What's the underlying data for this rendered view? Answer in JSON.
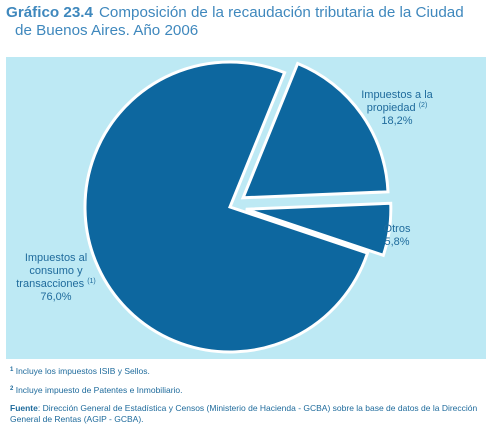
{
  "title": {
    "label": "Gráfico 23.4",
    "line1": "Composición de la recaudación tributaria de la Ciudad",
    "line2": "de Buenos Aires. Año 2006"
  },
  "chart_data": {
    "type": "pie",
    "title": "Composición de la recaudación tributaria de la Ciudad de Buenos Aires. Año 2006",
    "slices": [
      {
        "label": "Impuestos al consumo y transacciones",
        "label_lines": [
          "Impuestos al",
          "consumo y",
          "transacciones"
        ],
        "footnote": "(1)",
        "value": 76.0,
        "value_label": "76,0%",
        "color": "#0d679f",
        "exploded": false
      },
      {
        "label": "Impuestos a la propiedad",
        "label_lines": [
          "Impuestos a la",
          "propiedad"
        ],
        "footnote": "(2)",
        "value": 18.2,
        "value_label": "18,2%",
        "color": "#0d679f",
        "exploded": true
      },
      {
        "label": "Otros",
        "label_lines": [
          "Otros"
        ],
        "footnote": "",
        "value": 5.8,
        "value_label": "5,8%",
        "color": "#0d679f",
        "exploded": true
      }
    ],
    "background_color": "#bde9f4"
  },
  "notes": [
    {
      "marker": "1",
      "text": "Incluye los impuestos ISIB y Sellos."
    },
    {
      "marker": "2",
      "text": "Incluye impuesto de Patentes e Inmobiliario."
    }
  ],
  "source": {
    "label": "Fuente",
    "text": ": Dirección General de Estadística y Censos (Ministerio de Hacienda - GCBA) sobre la base de datos de la Dirección General de Rentas (AGIP - GCBA)."
  }
}
